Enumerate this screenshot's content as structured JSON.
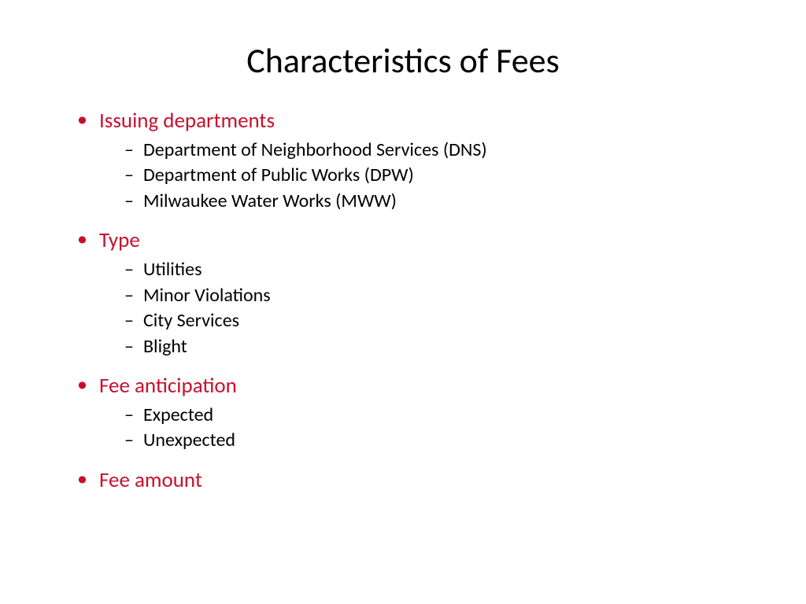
{
  "slide": {
    "title": "Characteristics of Fees",
    "title_fontsize": 44,
    "title_color": "#000000",
    "background_color": "#ffffff",
    "accent_color": "#c8102e",
    "body_color": "#000000",
    "top_bullet_fontsize": 27,
    "sub_bullet_fontsize": 24,
    "bullets": [
      {
        "label": "Issuing departments",
        "sub": [
          "Department of Neighborhood Services (DNS)",
          "Department of Public Works (DPW)",
          "Milwaukee Water Works (MWW)"
        ]
      },
      {
        "label": "Type",
        "sub": [
          "Utilities",
          "Minor Violations",
          "City Services",
          "Blight"
        ]
      },
      {
        "label": "Fee anticipation",
        "sub": [
          "Expected",
          "Unexpected"
        ]
      },
      {
        "label": "Fee amount",
        "sub": []
      }
    ]
  }
}
